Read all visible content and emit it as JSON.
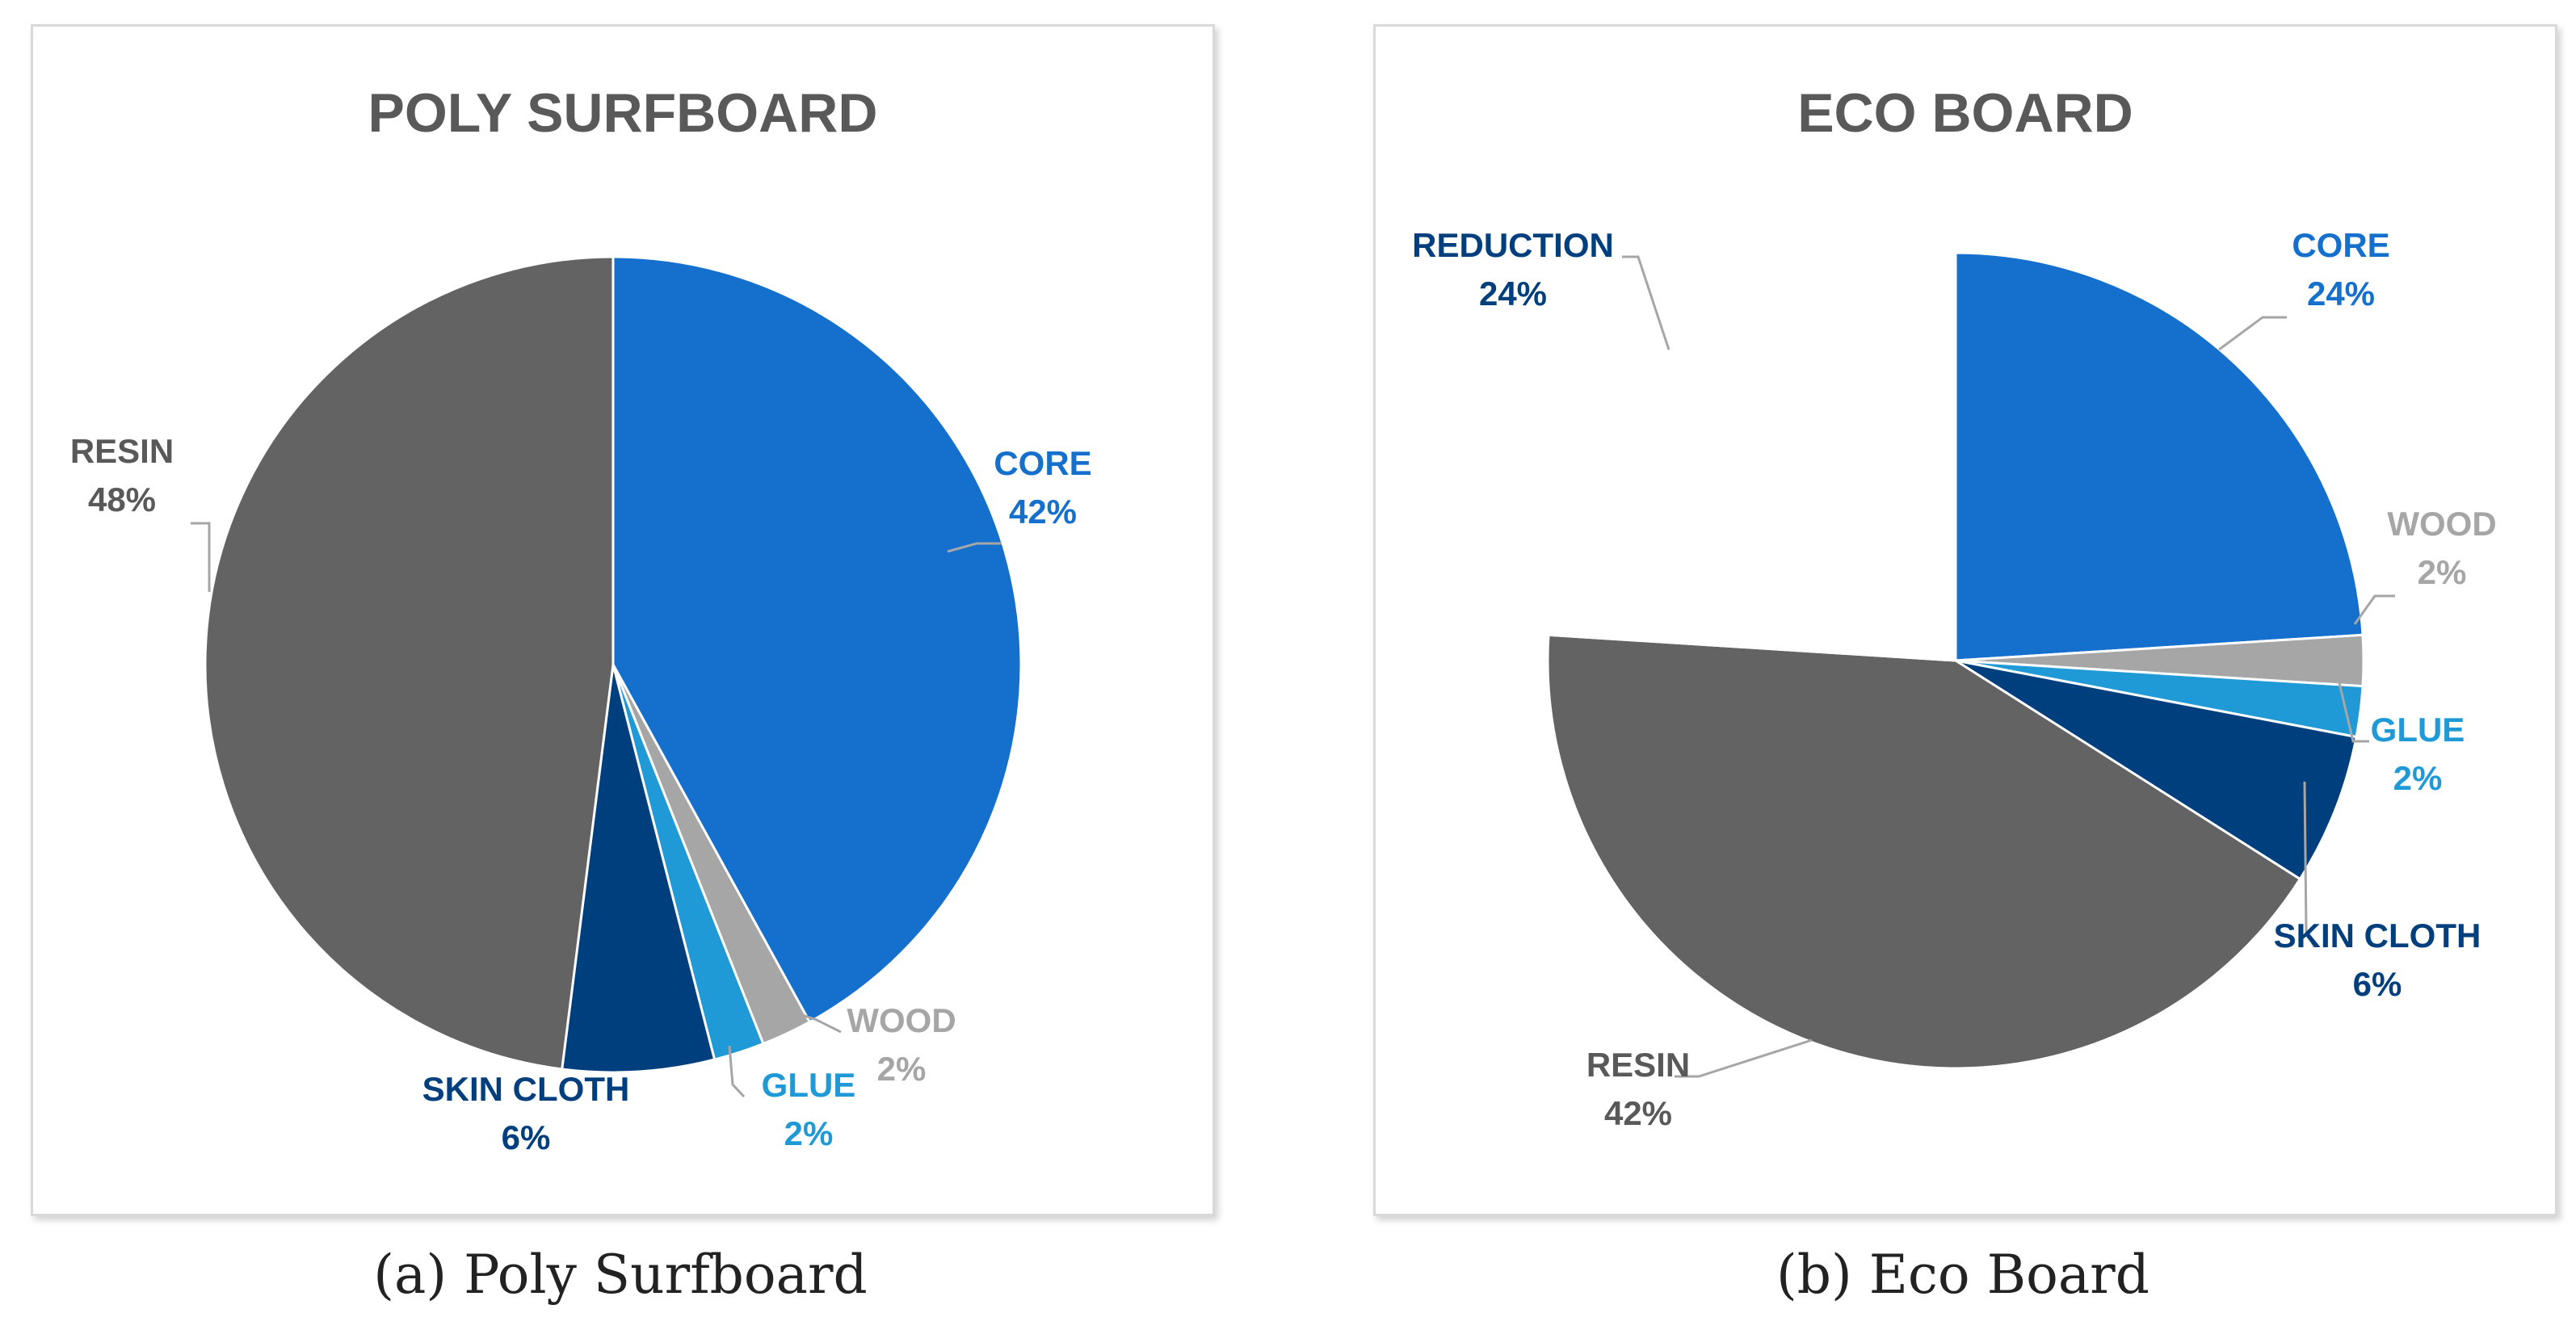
{
  "chart_data": [
    {
      "type": "pie",
      "title": "POLY SURFBOARD",
      "caption": "(a) Poly Surfboard",
      "slices": [
        {
          "label": "CORE",
          "value": 42,
          "pct": "42%",
          "color": "#1470cc",
          "text_color": "#1470cc"
        },
        {
          "label": "WOOD",
          "value": 2,
          "pct": "2%",
          "color": "#a6a6a6",
          "text_color": "#a6a6a6"
        },
        {
          "label": "GLUE",
          "value": 2,
          "pct": "2%",
          "color": "#1f9ad6",
          "text_color": "#1f9ad6"
        },
        {
          "label": "SKIN CLOTH",
          "value": 6,
          "pct": "6%",
          "color": "#003f7d",
          "text_color": "#003f7d"
        },
        {
          "label": "RESIN",
          "value": 48,
          "pct": "48%",
          "color": "#636363",
          "text_color": "#595959"
        }
      ]
    },
    {
      "type": "pie",
      "title": "ECO BOARD",
      "caption": "(b) Eco Board",
      "slices": [
        {
          "label": "CORE",
          "value": 24,
          "pct": "24%",
          "color": "#1470cc",
          "text_color": "#1470cc"
        },
        {
          "label": "WOOD",
          "value": 2,
          "pct": "2%",
          "color": "#a6a6a6",
          "text_color": "#a6a6a6"
        },
        {
          "label": "GLUE",
          "value": 2,
          "pct": "2%",
          "color": "#1f9ad6",
          "text_color": "#1f9ad6"
        },
        {
          "label": "SKIN CLOTH",
          "value": 6,
          "pct": "6%",
          "color": "#003f7d",
          "text_color": "#003f7d"
        },
        {
          "label": "RESIN",
          "value": 42,
          "pct": "42%",
          "color": "#636363",
          "text_color": "#595959"
        },
        {
          "label": "REDUCTION",
          "value": 24,
          "pct": "24%",
          "color": "#ffffff",
          "text_color": "#003f7d"
        }
      ]
    }
  ]
}
